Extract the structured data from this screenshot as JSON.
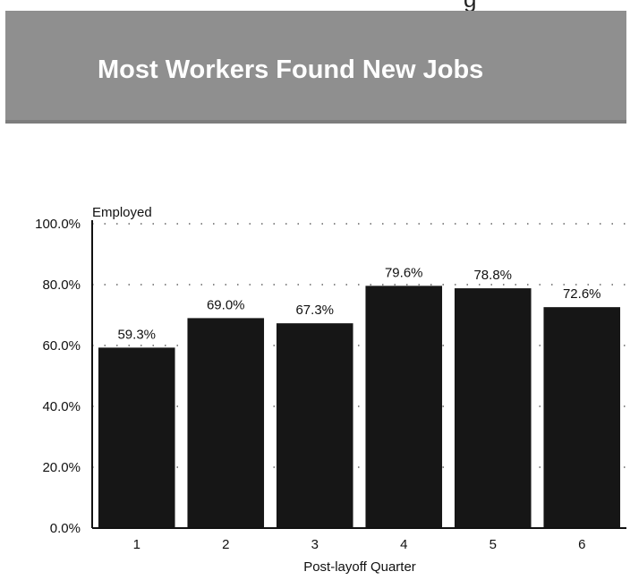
{
  "header": {
    "fragment_text": "g",
    "title": "Most Workers Found New Jobs"
  },
  "colors": {
    "banner_bg": "#8f8f8f",
    "bar_fill": "#161616"
  },
  "chart_data": {
    "type": "bar",
    "title": "Most Workers Found New Jobs",
    "xlabel": "Post-layoff Quarter",
    "ylabel": "Employed",
    "categories": [
      "1",
      "2",
      "3",
      "4",
      "5",
      "6"
    ],
    "values": [
      59.3,
      69.0,
      67.3,
      79.6,
      78.8,
      72.6
    ],
    "value_labels": [
      "59.3%",
      "69.0%",
      "67.3%",
      "79.6%",
      "78.8%",
      "72.6%"
    ],
    "yticks": [
      "0.0%",
      "20.0%",
      "40.0%",
      "60.0%",
      "80.0%",
      "100.0%"
    ],
    "ytick_values": [
      0,
      20,
      40,
      60,
      80,
      100
    ],
    "ylim": [
      0,
      100
    ],
    "grid": "dotted horizontal",
    "legend": "none"
  }
}
